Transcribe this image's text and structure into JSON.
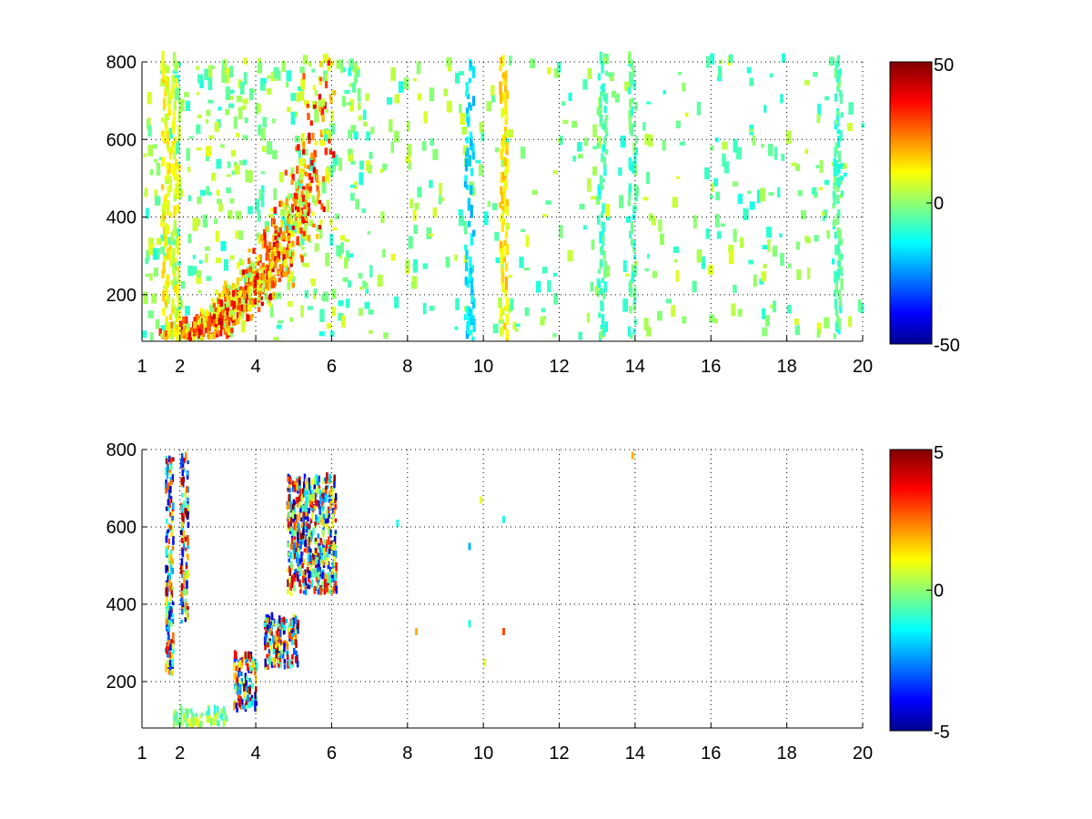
{
  "chart_data": [
    {
      "type": "heatmap",
      "x_ticks": [
        1,
        2,
        4,
        6,
        8,
        10,
        12,
        14,
        16,
        18,
        20
      ],
      "y_ticks": [
        200,
        400,
        600,
        800
      ],
      "xlim": [
        1,
        20
      ],
      "ylim": [
        80,
        800
      ],
      "grid": true,
      "colormap": "jet",
      "colorbar": {
        "ticks": [
          50,
          0,
          -50
        ],
        "range": [
          -50,
          50
        ]
      },
      "features": [
        {
          "kind": "curve",
          "points": [
            [
              1.7,
              80
            ],
            [
              2.6,
              100
            ],
            [
              3.4,
              170
            ],
            [
              4.0,
              230
            ],
            [
              4.6,
              300
            ],
            [
              5.0,
              380
            ],
            [
              5.3,
              470
            ],
            [
              5.5,
              560
            ],
            [
              5.6,
              640
            ],
            [
              5.8,
              720
            ]
          ],
          "value": 22,
          "spread": 0.35
        },
        {
          "kind": "band",
          "x": 1.6,
          "width": 0.12,
          "value": 12
        },
        {
          "kind": "band",
          "x": 1.85,
          "width": 0.1,
          "value": 10
        },
        {
          "kind": "band",
          "x": 9.6,
          "width": 0.12,
          "value": -15
        },
        {
          "kind": "band",
          "x": 10.5,
          "width": 0.1,
          "value": 14
        },
        {
          "kind": "band",
          "x": 13.1,
          "width": 0.12,
          "value": -6
        },
        {
          "kind": "band",
          "x": 13.9,
          "width": 0.1,
          "value": -4
        },
        {
          "kind": "band",
          "x": 19.3,
          "width": 0.12,
          "value": -5
        }
      ]
    },
    {
      "type": "heatmap",
      "x_ticks": [
        1,
        2,
        4,
        6,
        8,
        10,
        12,
        14,
        16,
        18,
        20
      ],
      "y_ticks": [
        200,
        400,
        600,
        800
      ],
      "xlim": [
        1,
        20
      ],
      "ylim": [
        80,
        800
      ],
      "grid": true,
      "colormap": "jet",
      "colorbar": {
        "ticks": [
          5,
          0,
          -5
        ],
        "range": [
          -5,
          5
        ]
      },
      "features": [
        {
          "kind": "cluster",
          "x": [
            3.4,
            4.0
          ],
          "y": [
            120,
            260
          ],
          "value_range": [
            -5,
            5
          ]
        },
        {
          "kind": "cluster",
          "x": [
            4.2,
            5.1
          ],
          "y": [
            230,
            360
          ],
          "value_range": [
            -5,
            5
          ]
        },
        {
          "kind": "cluster",
          "x": [
            4.8,
            6.1
          ],
          "y": [
            420,
            720
          ],
          "value_range": [
            -5,
            5
          ]
        },
        {
          "kind": "cluster",
          "x": [
            1.6,
            1.8
          ],
          "y": [
            210,
            770
          ],
          "value_range": [
            -5,
            5
          ]
        },
        {
          "kind": "cluster",
          "x": [
            2.0,
            2.2
          ],
          "y": [
            350,
            780
          ],
          "value_range": [
            -5,
            5
          ]
        },
        {
          "kind": "cluster",
          "x": [
            1.8,
            3.2
          ],
          "y": [
            80,
            120
          ],
          "value_range": [
            -1,
            1
          ]
        }
      ]
    }
  ]
}
